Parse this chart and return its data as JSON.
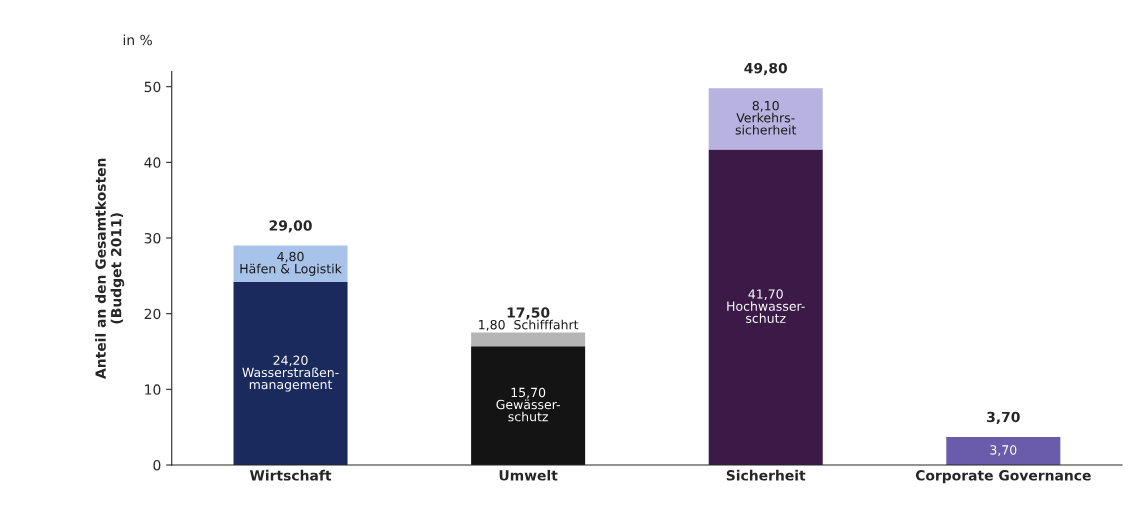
{
  "chart_data": {
    "type": "bar",
    "stacked": true,
    "categories": [
      "Wirtschaft",
      "Umwelt",
      "Sicherheit",
      "Corporate Governance"
    ],
    "ylabel": "Anteil an den Gesamtkosten\n(Budget 2011)",
    "annotations": [
      "in %"
    ],
    "ylim": [
      0,
      52
    ],
    "yticks": [
      0,
      10,
      20,
      30,
      40,
      50
    ],
    "grid": false,
    "legend": false,
    "series": [
      {
        "values": [
          24.2,
          15.7,
          41.7,
          3.7
        ],
        "colors": [
          "#1b2a5c",
          "#141414",
          "#3b1a48",
          "#6a5cab"
        ],
        "value_labels": [
          "24,20\nWasserstraßen-\nmanagement",
          "15,70\nGewässer-\nschutz",
          "41,70\nHochwasser-\nschutz",
          "3,70"
        ]
      },
      {
        "values": [
          4.8,
          1.8,
          8.1,
          null
        ],
        "colors": [
          "#a8c3ea",
          "#b5b5b5",
          "#b8b2e0",
          "#ffffff"
        ],
        "value_labels": [
          "4,80\nHäfen & Logistik",
          "1,80  Schifffahrt",
          "8,10\nVerkehrs-\nsicherheit",
          null
        ]
      }
    ],
    "totals": [
      "29,00",
      "17,50",
      "49,80",
      "3,70"
    ]
  }
}
